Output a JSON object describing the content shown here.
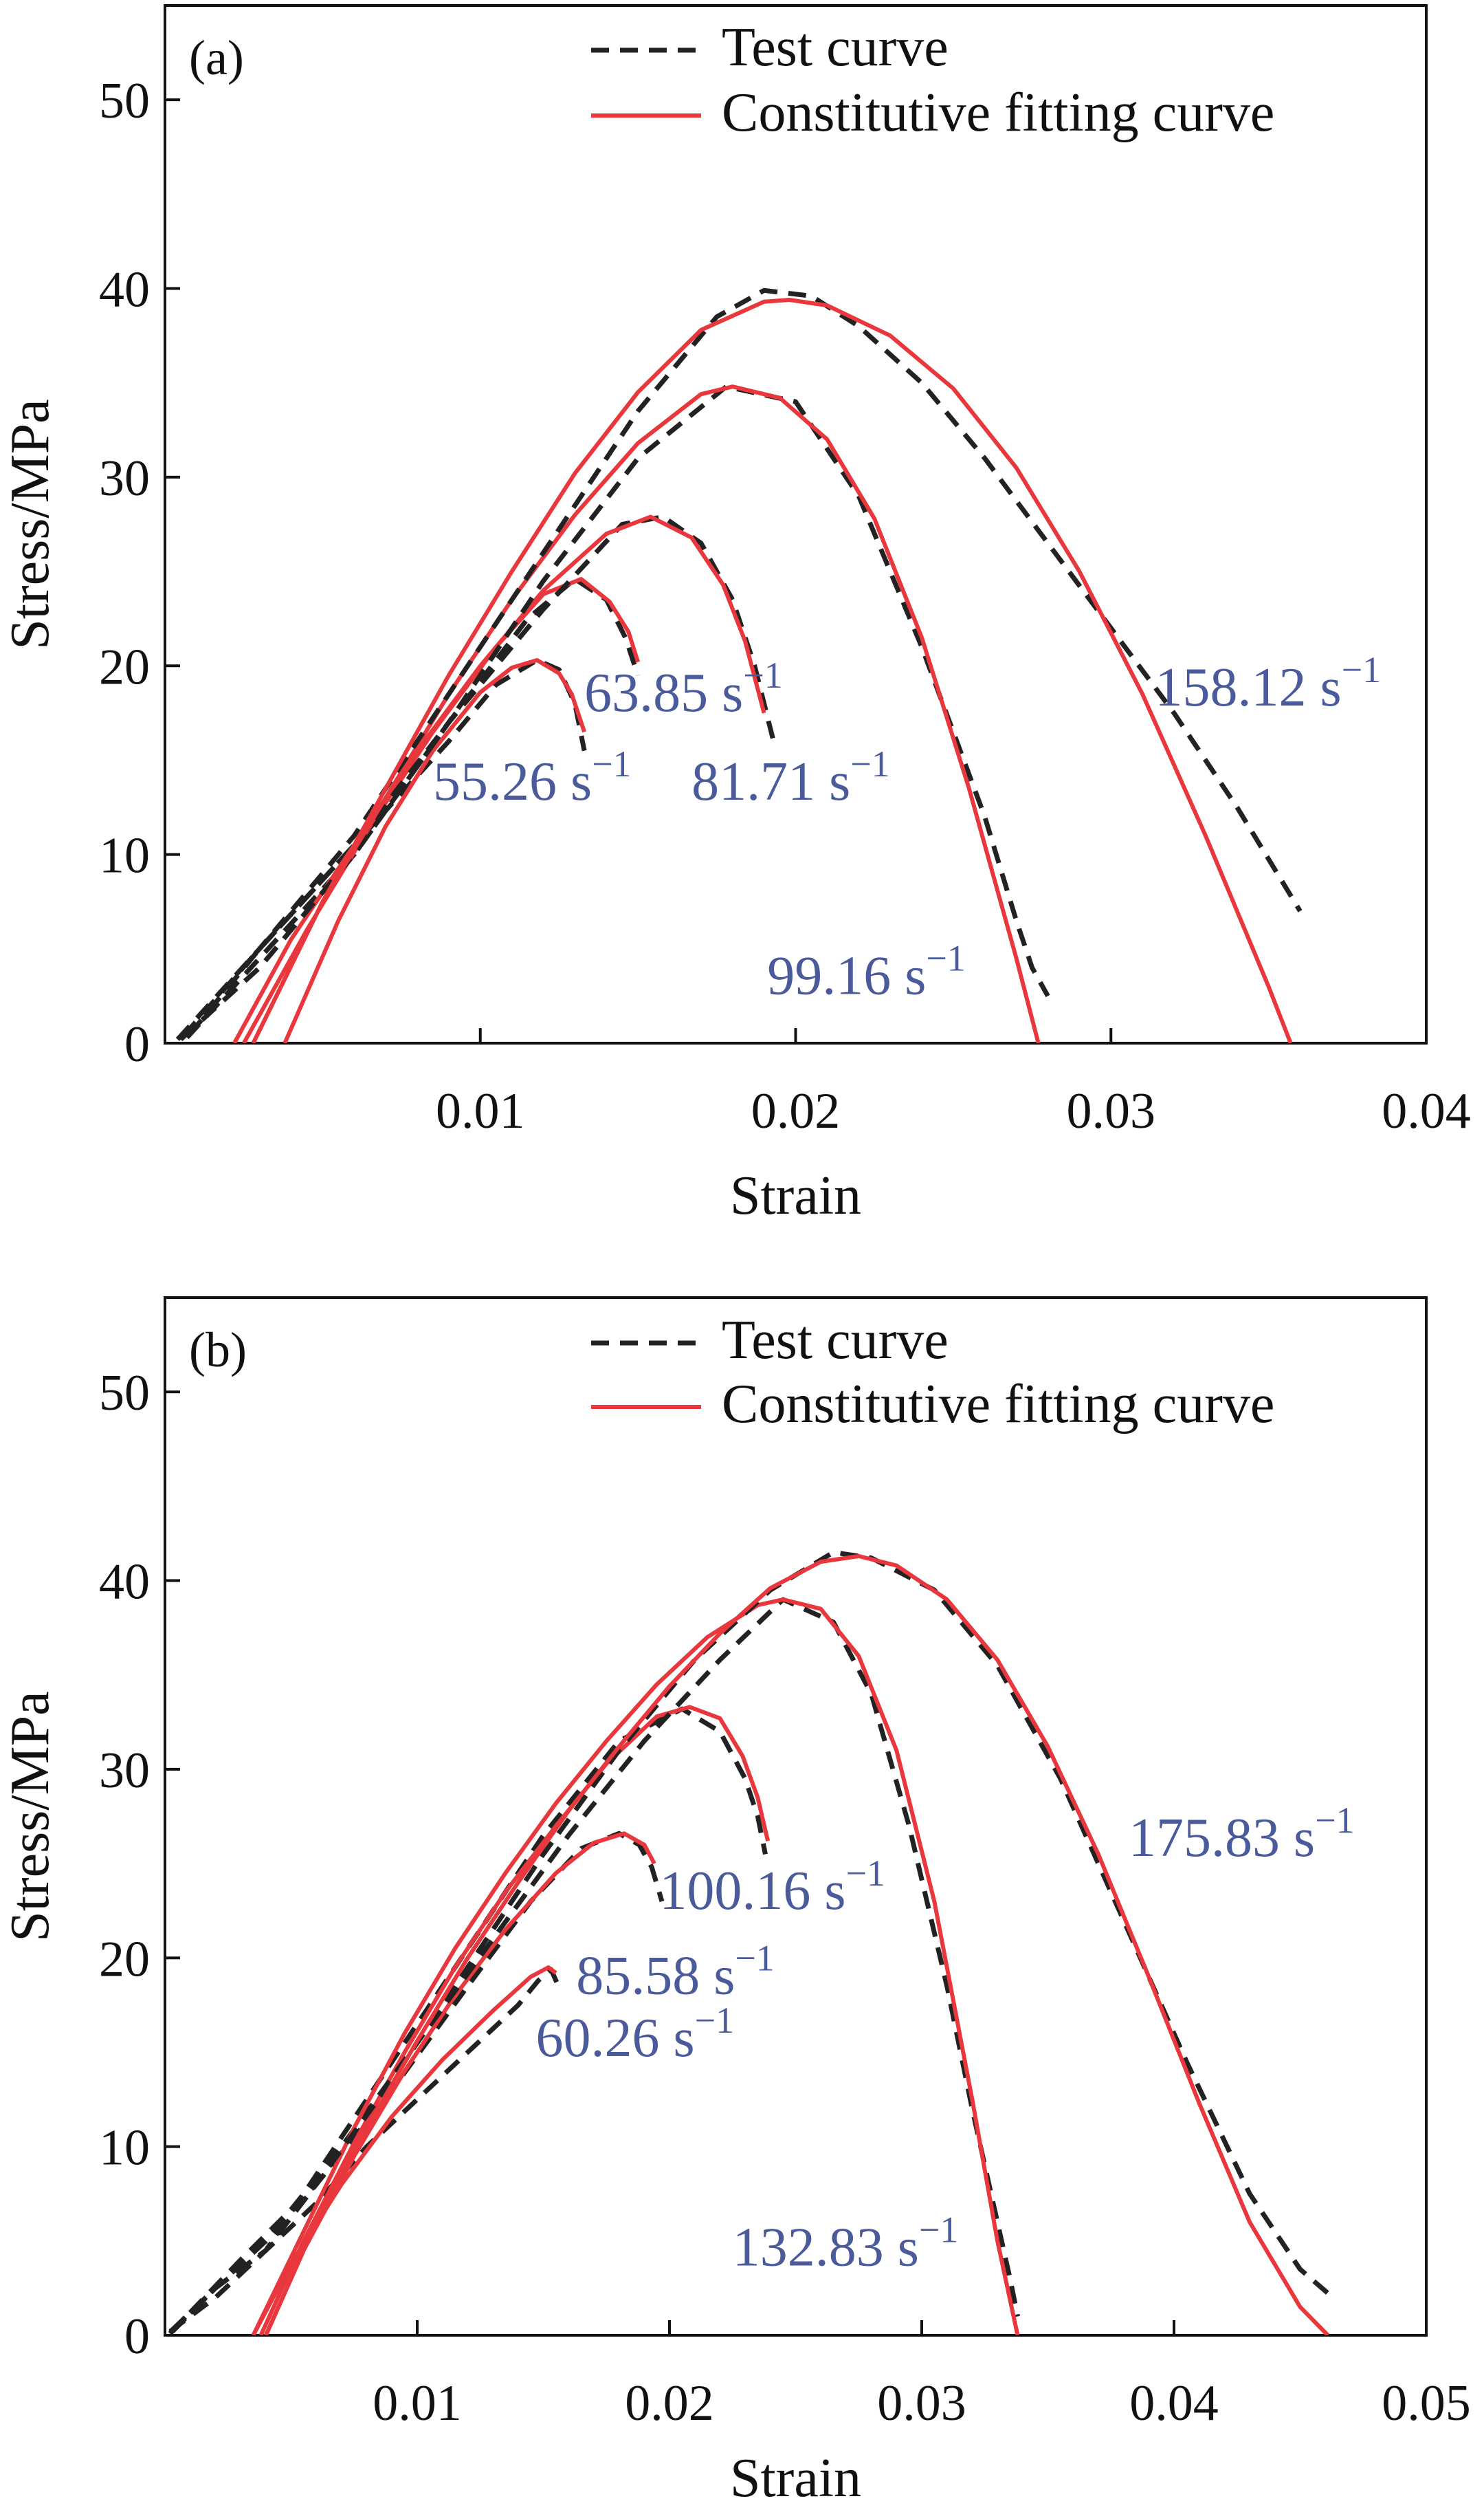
{
  "chart_data": [
    {
      "type": "line",
      "panel_label": "(a)",
      "xlabel": "Strain",
      "ylabel": "Stress/MPa",
      "xlim": [
        0,
        0.04
      ],
      "ylim": [
        0,
        55
      ],
      "x_ticks": [
        0.01,
        0.02,
        0.03,
        0.04
      ],
      "x_tick_labels": [
        "0.01",
        "0.02",
        "0.03",
        "0.04"
      ],
      "y_ticks": [
        0,
        10,
        20,
        30,
        40,
        50
      ],
      "y_tick_labels": [
        "0",
        "10",
        "20",
        "30",
        "40",
        "50"
      ],
      "legend": {
        "position": "top-right",
        "test_label": "Test curve",
        "fit_label": "Constitutive fitting curve"
      },
      "colors": {
        "test": "#222222",
        "fit": "#e8383d",
        "rate_label": "#4a5a9a",
        "axis": "#111111"
      },
      "series": [
        {
          "name": "55.26 s⁻¹",
          "rate": "55.26",
          "unit": "s",
          "exp": "−1",
          "test": {
            "x": [
              0.0008,
              0.003,
              0.006,
              0.009,
              0.0105,
              0.0118,
              0.0125,
              0.013,
              0.0133
            ],
            "y": [
              0.5,
              5,
              10.5,
              16,
              19,
              20.3,
              19.8,
              18,
              15.5
            ]
          },
          "fit": {
            "x": [
              0.0038,
              0.0055,
              0.007,
              0.0085,
              0.01,
              0.011,
              0.0118,
              0.0125,
              0.0129,
              0.0133
            ],
            "y": [
              0,
              6.5,
              11.5,
              15.5,
              18.6,
              19.9,
              20.3,
              19.6,
              18.5,
              16.5
            ]
          }
        },
        {
          "name": "63.85 s⁻¹",
          "rate": "63.85",
          "unit": "s",
          "exp": "−1",
          "test": {
            "x": [
              0.0007,
              0.003,
              0.006,
              0.009,
              0.0115,
              0.013,
              0.014,
              0.0146,
              0.015
            ],
            "y": [
              0.3,
              4.5,
              10,
              17,
              22.5,
              24.6,
              23.5,
              21.5,
              19.5
            ]
          },
          "fit": {
            "x": [
              0.0025,
              0.0045,
              0.0065,
              0.0085,
              0.0105,
              0.012,
              0.0132,
              0.0141,
              0.0147,
              0.015
            ],
            "y": [
              0,
              6,
              11.5,
              16.5,
              21,
              23.8,
              24.6,
              23.4,
              21.8,
              20.2
            ]
          }
        },
        {
          "name": "81.71 s⁻¹",
          "rate": "81.71",
          "unit": "s",
          "exp": "−1",
          "test": {
            "x": [
              0.0006,
              0.003,
              0.006,
              0.009,
              0.012,
              0.0145,
              0.0158,
              0.017,
              0.018,
              0.0187,
              0.0193
            ],
            "y": [
              0.4,
              5,
              10.5,
              17,
              23,
              27.5,
              27.9,
              26.5,
              23.5,
              20,
              16
            ]
          },
          "fit": {
            "x": [
              0.0022,
              0.004,
              0.006,
              0.008,
              0.01,
              0.012,
              0.014,
              0.0154,
              0.0167,
              0.0177,
              0.0184,
              0.019
            ],
            "y": [
              0,
              5.5,
              10.5,
              15.5,
              20,
              24,
              27,
              27.9,
              26.8,
              24.3,
              21.3,
              17.5
            ]
          }
        },
        {
          "name": "99.16 s⁻¹",
          "rate": "99.16",
          "unit": "s",
          "exp": "−1",
          "test": {
            "x": [
              0.0005,
              0.003,
              0.006,
              0.009,
              0.012,
              0.015,
              0.0178,
              0.02,
              0.022,
              0.024,
              0.026,
              0.027,
              0.0275,
              0.028
            ],
            "y": [
              0.2,
              4,
              10,
              17,
              24.5,
              31,
              34.8,
              34,
              29,
              21,
              12,
              6.5,
              4,
              2.5
            ]
          },
          "fit": {
            "x": [
              0.0028,
              0.005,
              0.007,
              0.009,
              0.011,
              0.013,
              0.015,
              0.017,
              0.018,
              0.0195,
              0.021,
              0.0225,
              0.024,
              0.0255,
              0.027,
              0.0277
            ],
            "y": [
              0,
              7.5,
              13,
              18.5,
              23.5,
              28,
              31.8,
              34.4,
              34.8,
              34.2,
              32,
              27.8,
              21.5,
              13.5,
              4.5,
              0
            ]
          }
        },
        {
          "name": "158.12 s⁻¹",
          "rate": "158.12",
          "unit": "s",
          "exp": "−1",
          "test": {
            "x": [
              0.0004,
              0.003,
              0.006,
              0.009,
              0.012,
              0.015,
              0.0175,
              0.019,
              0.0205,
              0.022,
              0.024,
              0.026,
              0.028,
              0.03,
              0.032,
              0.034,
              0.036
            ],
            "y": [
              0.2,
              5,
              11,
              18.5,
              26,
              33.5,
              38.5,
              39.9,
              39.6,
              38,
              35,
              31,
              26.5,
              22,
              17.5,
              12.5,
              7
            ]
          },
          "fit": {
            "x": [
              0.0028,
              0.005,
              0.007,
              0.009,
              0.011,
              0.013,
              0.015,
              0.017,
              0.019,
              0.0198,
              0.021,
              0.023,
              0.025,
              0.027,
              0.029,
              0.031,
              0.033,
              0.035,
              0.0357
            ],
            "y": [
              0,
              7.5,
              13.5,
              19.5,
              25,
              30.2,
              34.5,
              37.8,
              39.3,
              39.4,
              39.1,
              37.5,
              34.7,
              30.5,
              25,
              18.5,
              11,
              3,
              0
            ]
          }
        }
      ],
      "rate_labels": [
        {
          "series": "55.26 s⁻¹",
          "x": 0.0085,
          "y": 12.9
        },
        {
          "series": "63.85 s⁻¹",
          "x": 0.0133,
          "y": 17.6
        },
        {
          "series": "81.71 s⁻¹",
          "x": 0.0167,
          "y": 12.9
        },
        {
          "series": "99.16 s⁻¹",
          "x": 0.0191,
          "y": 2.6
        },
        {
          "series": "158.12 s⁻¹",
          "x": 0.0314,
          "y": 17.9
        }
      ]
    },
    {
      "type": "line",
      "panel_label": "(b)",
      "xlabel": "Strain",
      "ylabel": "Stress/MPa",
      "xlim": [
        0,
        0.05
      ],
      "ylim": [
        0,
        55
      ],
      "x_ticks": [
        0.01,
        0.02,
        0.03,
        0.04,
        0.05
      ],
      "x_tick_labels": [
        "0.01",
        "0.02",
        "0.03",
        "0.04",
        "0.05"
      ],
      "y_ticks": [
        0,
        10,
        20,
        30,
        40,
        50
      ],
      "y_tick_labels": [
        "0",
        "10",
        "20",
        "30",
        "40",
        "50"
      ],
      "legend": {
        "position": "top-right",
        "test_label": "Test curve",
        "fit_label": "Constitutive fitting curve"
      },
      "colors": {
        "test": "#222222",
        "fit": "#e8383d",
        "rate_label": "#4a5a9a",
        "axis": "#111111"
      },
      "series": [
        {
          "name": "60.26 s⁻¹",
          "rate": "60.26",
          "unit": "s",
          "exp": "−1",
          "test": {
            "x": [
              0.0003,
              0.002,
              0.004,
              0.006,
              0.008,
              0.01,
              0.012,
              0.014,
              0.0148,
              0.0153,
              0.0156
            ],
            "y": [
              0.3,
              2.5,
              4.5,
              7,
              10,
              12.5,
              15,
              17.5,
              18.8,
              19.4,
              18.5
            ]
          },
          "fit": {
            "x": [
              0.0035,
              0.005,
              0.007,
              0.009,
              0.011,
              0.013,
              0.0145,
              0.0152,
              0.0155
            ],
            "y": [
              0,
              3.8,
              8,
              11.6,
              14.6,
              17.2,
              19,
              19.5,
              19.2
            ]
          }
        },
        {
          "name": "85.58 s⁻¹",
          "rate": "85.58",
          "unit": "s",
          "exp": "−1",
          "test": {
            "x": [
              0.0003,
              0.002,
              0.004,
              0.006,
              0.009,
              0.012,
              0.0145,
              0.0165,
              0.018,
              0.0188,
              0.0193,
              0.0197
            ],
            "y": [
              0.2,
              2.5,
              4.5,
              8,
              13,
              18.5,
              23,
              25.8,
              26.6,
              26,
              24.8,
              23
            ]
          },
          "fit": {
            "x": [
              0.004,
              0.0055,
              0.0075,
              0.0095,
              0.0115,
              0.0135,
              0.0155,
              0.017,
              0.0182,
              0.019,
              0.0194
            ],
            "y": [
              0,
              4.5,
              9.5,
              14,
              18,
              21.5,
              24.5,
              26.1,
              26.6,
              26,
              25
            ]
          }
        },
        {
          "name": "100.16 s⁻¹",
          "rate": "100.16",
          "unit": "s",
          "exp": "−1",
          "test": {
            "x": [
              0.0002,
              0.002,
              0.004,
              0.006,
              0.009,
              0.012,
              0.015,
              0.018,
              0.0205,
              0.022,
              0.023,
              0.0235,
              0.0238
            ],
            "y": [
              0.2,
              2,
              4.5,
              8.5,
              14.5,
              20.5,
              26.5,
              31.5,
              33.2,
              32,
              29.5,
              27.5,
              25.5
            ]
          },
          "fit": {
            "x": [
              0.0038,
              0.0055,
              0.0075,
              0.0095,
              0.0115,
              0.0135,
              0.0155,
              0.0175,
              0.0195,
              0.0208,
              0.022,
              0.0229,
              0.0235,
              0.0239
            ],
            "y": [
              0,
              5,
              10.2,
              15,
              19.5,
              23.5,
              27,
              30.3,
              32.8,
              33.3,
              32.7,
              30.7,
              28.5,
              26.2
            ]
          }
        },
        {
          "name": "132.83 s⁻¹",
          "rate": "132.83",
          "unit": "s",
          "exp": "−1",
          "test": {
            "x": [
              0.0002,
              0.002,
              0.004,
              0.007,
              0.01,
              0.013,
              0.016,
              0.019,
              0.022,
              0.0245,
              0.0265,
              0.028,
              0.0295,
              0.031,
              0.032,
              0.033,
              0.0335,
              0.0338
            ],
            "y": [
              0.1,
              2.5,
              5,
              10,
              15.5,
              21,
              26.5,
              31.5,
              35.8,
              39,
              37.8,
              34,
              27,
              18.5,
              12,
              6,
              3,
              1
            ]
          },
          "fit": {
            "x": [
              0.0035,
              0.0055,
              0.0075,
              0.0095,
              0.0115,
              0.0135,
              0.0155,
              0.0175,
              0.0195,
              0.0215,
              0.0235,
              0.0245,
              0.026,
              0.0275,
              0.029,
              0.0305,
              0.032,
              0.033,
              0.0338
            ],
            "y": [
              0,
              5.5,
              11,
              16,
              20.5,
              24.5,
              28.2,
              31.5,
              34.5,
              37,
              38.7,
              39,
              38.5,
              36,
              31,
              23,
              12.5,
              5,
              0
            ]
          }
        },
        {
          "name": "175.83 s⁻¹",
          "rate": "175.83",
          "unit": "s",
          "exp": "−1",
          "test": {
            "x": [
              0.0002,
              0.003,
              0.006,
              0.009,
              0.012,
              0.015,
              0.018,
              0.021,
              0.024,
              0.0265,
              0.028,
              0.0305,
              0.033,
              0.0355,
              0.038,
              0.0405,
              0.043,
              0.045,
              0.0463
            ],
            "y": [
              0.1,
              4,
              8,
              13.5,
              19.5,
              25.5,
              31,
              35.8,
              39.5,
              41.5,
              41.2,
              39.5,
              35.5,
              29.5,
              22,
              14.5,
              7.5,
              3.5,
              2
            ]
          },
          "fit": {
            "x": [
              0.004,
              0.006,
              0.008,
              0.01,
              0.012,
              0.014,
              0.016,
              0.018,
              0.02,
              0.022,
              0.024,
              0.026,
              0.0275,
              0.029,
              0.031,
              0.033,
              0.035,
              0.037,
              0.039,
              0.041,
              0.043,
              0.045,
              0.0461
            ],
            "y": [
              0,
              6,
              11,
              15.6,
              20,
              24,
              27.8,
              31.2,
              34.4,
              37.2,
              39.6,
              41,
              41.3,
              40.8,
              39,
              35.8,
              31.2,
              25.5,
              19,
              12.3,
              6,
              1.5,
              0
            ]
          }
        }
      ],
      "rate_labels": [
        {
          "series": "60.26 s⁻¹",
          "x": 0.0147,
          "y": 14.8
        },
        {
          "series": "85.58 s⁻¹",
          "x": 0.0163,
          "y": 18.1
        },
        {
          "series": "100.16 s⁻¹",
          "x": 0.0196,
          "y": 22.6
        },
        {
          "series": "132.83 s⁻¹",
          "x": 0.0225,
          "y": 3.7
        },
        {
          "series": "175.83 s⁻¹",
          "x": 0.0382,
          "y": 25.4
        }
      ]
    }
  ]
}
